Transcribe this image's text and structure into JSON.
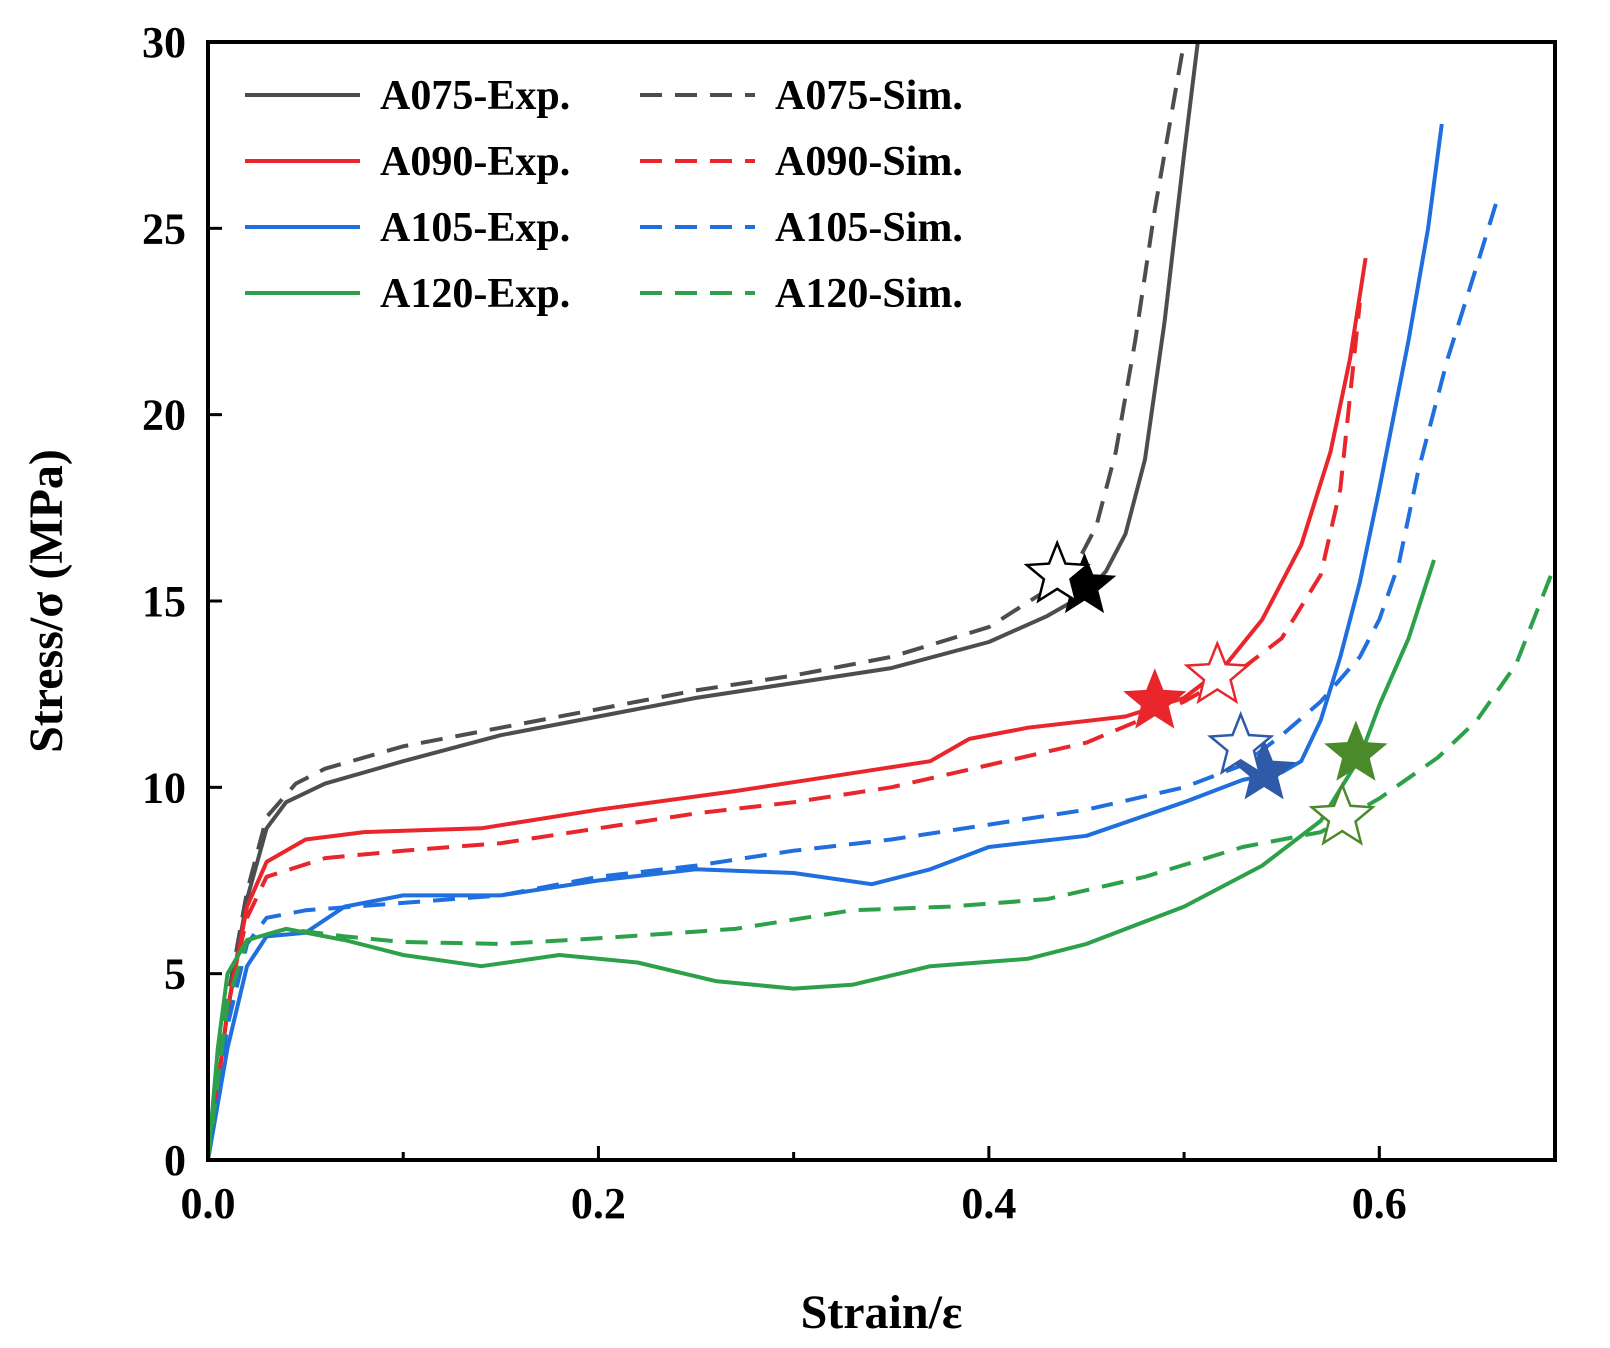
{
  "chart_data": {
    "type": "line",
    "title": "",
    "xlabel": "Strain/ε",
    "ylabel": "Stress/σ (MPa)",
    "xlim": [
      0.0,
      0.69
    ],
    "ylim": [
      0,
      30
    ],
    "x_ticks": [
      0.0,
      0.2,
      0.4,
      0.6
    ],
    "x_tick_labels": [
      "0.0",
      "0.2",
      "0.4",
      "0.6"
    ],
    "x_minor_ticks": [
      0.1,
      0.3,
      0.5
    ],
    "y_ticks": [
      0,
      5,
      10,
      15,
      20,
      25,
      30
    ],
    "y_tick_labels": [
      "0",
      "5",
      "10",
      "15",
      "20",
      "25",
      "30"
    ],
    "grid": false,
    "legend_position": "top-left",
    "series": [
      {
        "name": "A075-Exp.",
        "color": "#4d4d4d",
        "dash": "solid",
        "points": [
          [
            0,
            0
          ],
          [
            0.01,
            4
          ],
          [
            0.02,
            7
          ],
          [
            0.03,
            8.9
          ],
          [
            0.04,
            9.6
          ],
          [
            0.06,
            10.1
          ],
          [
            0.1,
            10.7
          ],
          [
            0.15,
            11.4
          ],
          [
            0.2,
            11.9
          ],
          [
            0.25,
            12.4
          ],
          [
            0.3,
            12.8
          ],
          [
            0.35,
            13.2
          ],
          [
            0.4,
            13.9
          ],
          [
            0.43,
            14.6
          ],
          [
            0.45,
            15.2
          ],
          [
            0.46,
            15.8
          ],
          [
            0.47,
            16.8
          ],
          [
            0.48,
            18.8
          ],
          [
            0.49,
            22.5
          ],
          [
            0.5,
            27
          ],
          [
            0.507,
            30
          ]
        ]
      },
      {
        "name": "A075-Sim.",
        "color": "#4d4d4d",
        "dash": "dashed",
        "points": [
          [
            0,
            0
          ],
          [
            0.01,
            4.3
          ],
          [
            0.02,
            7.2
          ],
          [
            0.03,
            9.2
          ],
          [
            0.045,
            10.1
          ],
          [
            0.06,
            10.5
          ],
          [
            0.1,
            11.1
          ],
          [
            0.15,
            11.6
          ],
          [
            0.2,
            12.1
          ],
          [
            0.25,
            12.6
          ],
          [
            0.3,
            13
          ],
          [
            0.35,
            13.5
          ],
          [
            0.4,
            14.3
          ],
          [
            0.43,
            15.3
          ],
          [
            0.445,
            16
          ],
          [
            0.455,
            17
          ],
          [
            0.465,
            19
          ],
          [
            0.475,
            22
          ],
          [
            0.485,
            25.5
          ],
          [
            0.495,
            28.5
          ],
          [
            0.5,
            30
          ]
        ]
      },
      {
        "name": "A090-Exp.",
        "color": "#e8262b",
        "dash": "solid",
        "points": [
          [
            0,
            0
          ],
          [
            0.01,
            4
          ],
          [
            0.02,
            6.8
          ],
          [
            0.03,
            8
          ],
          [
            0.05,
            8.6
          ],
          [
            0.08,
            8.8
          ],
          [
            0.14,
            8.9
          ],
          [
            0.2,
            9.4
          ],
          [
            0.27,
            9.9
          ],
          [
            0.32,
            10.3
          ],
          [
            0.37,
            10.7
          ],
          [
            0.39,
            11.3
          ],
          [
            0.42,
            11.6
          ],
          [
            0.47,
            11.9
          ],
          [
            0.5,
            12.4
          ],
          [
            0.52,
            13.2
          ],
          [
            0.54,
            14.5
          ],
          [
            0.56,
            16.5
          ],
          [
            0.575,
            19
          ],
          [
            0.585,
            21.5
          ],
          [
            0.593,
            24.2
          ]
        ]
      },
      {
        "name": "A090-Sim.",
        "color": "#e8262b",
        "dash": "dashed",
        "points": [
          [
            0,
            0
          ],
          [
            0.01,
            4.2
          ],
          [
            0.02,
            6.5
          ],
          [
            0.03,
            7.6
          ],
          [
            0.06,
            8.1
          ],
          [
            0.1,
            8.3
          ],
          [
            0.15,
            8.5
          ],
          [
            0.2,
            8.9
          ],
          [
            0.25,
            9.3
          ],
          [
            0.3,
            9.6
          ],
          [
            0.35,
            10
          ],
          [
            0.4,
            10.6
          ],
          [
            0.45,
            11.2
          ],
          [
            0.5,
            12.3
          ],
          [
            0.53,
            13.2
          ],
          [
            0.55,
            14
          ],
          [
            0.57,
            15.7
          ],
          [
            0.58,
            18
          ],
          [
            0.59,
            23
          ]
        ]
      },
      {
        "name": "A105-Exp.",
        "color": "#1f6fde",
        "dash": "solid",
        "points": [
          [
            0,
            0
          ],
          [
            0.01,
            3
          ],
          [
            0.02,
            5.2
          ],
          [
            0.03,
            6
          ],
          [
            0.05,
            6.1
          ],
          [
            0.07,
            6.8
          ],
          [
            0.1,
            7.1
          ],
          [
            0.15,
            7.1
          ],
          [
            0.2,
            7.5
          ],
          [
            0.25,
            7.8
          ],
          [
            0.3,
            7.7
          ],
          [
            0.34,
            7.4
          ],
          [
            0.37,
            7.8
          ],
          [
            0.4,
            8.4
          ],
          [
            0.45,
            8.7
          ],
          [
            0.5,
            9.6
          ],
          [
            0.53,
            10.2
          ],
          [
            0.55,
            10.4
          ],
          [
            0.56,
            10.7
          ],
          [
            0.57,
            11.8
          ],
          [
            0.58,
            13.5
          ],
          [
            0.59,
            15.5
          ],
          [
            0.6,
            18
          ],
          [
            0.615,
            22
          ],
          [
            0.625,
            25
          ],
          [
            0.632,
            27.8
          ]
        ]
      },
      {
        "name": "A105-Sim.",
        "color": "#1f6fde",
        "dash": "dashed",
        "points": [
          [
            0,
            0
          ],
          [
            0.01,
            3.6
          ],
          [
            0.02,
            5.8
          ],
          [
            0.03,
            6.5
          ],
          [
            0.05,
            6.7
          ],
          [
            0.1,
            6.9
          ],
          [
            0.15,
            7.1
          ],
          [
            0.2,
            7.6
          ],
          [
            0.25,
            7.9
          ],
          [
            0.3,
            8.3
          ],
          [
            0.35,
            8.6
          ],
          [
            0.4,
            9
          ],
          [
            0.45,
            9.4
          ],
          [
            0.5,
            10
          ],
          [
            0.53,
            10.6
          ],
          [
            0.55,
            11.4
          ],
          [
            0.57,
            12.3
          ],
          [
            0.59,
            13.5
          ],
          [
            0.6,
            14.5
          ],
          [
            0.61,
            16
          ],
          [
            0.62,
            18.5
          ],
          [
            0.635,
            21.5
          ],
          [
            0.65,
            24
          ],
          [
            0.66,
            25.7
          ]
        ]
      },
      {
        "name": "A120-Exp.",
        "color": "#2ca14a",
        "dash": "solid",
        "points": [
          [
            0,
            0
          ],
          [
            0.005,
            3
          ],
          [
            0.01,
            5
          ],
          [
            0.02,
            5.9
          ],
          [
            0.04,
            6.2
          ],
          [
            0.07,
            5.9
          ],
          [
            0.1,
            5.5
          ],
          [
            0.14,
            5.2
          ],
          [
            0.18,
            5.5
          ],
          [
            0.22,
            5.3
          ],
          [
            0.26,
            4.8
          ],
          [
            0.3,
            4.6
          ],
          [
            0.33,
            4.7
          ],
          [
            0.37,
            5.2
          ],
          [
            0.42,
            5.4
          ],
          [
            0.45,
            5.8
          ],
          [
            0.5,
            6.8
          ],
          [
            0.54,
            7.9
          ],
          [
            0.57,
            9.1
          ],
          [
            0.59,
            10.8
          ],
          [
            0.6,
            12.2
          ],
          [
            0.615,
            14
          ],
          [
            0.628,
            16.1
          ]
        ]
      },
      {
        "name": "A120-Sim.",
        "color": "#2ca14a",
        "dash": "dashed",
        "points": [
          [
            0,
            0
          ],
          [
            0.01,
            4.2
          ],
          [
            0.02,
            5.9
          ],
          [
            0.04,
            6.2
          ],
          [
            0.07,
            6
          ],
          [
            0.1,
            5.85
          ],
          [
            0.15,
            5.8
          ],
          [
            0.2,
            5.95
          ],
          [
            0.27,
            6.2
          ],
          [
            0.33,
            6.7
          ],
          [
            0.38,
            6.8
          ],
          [
            0.43,
            7
          ],
          [
            0.48,
            7.6
          ],
          [
            0.53,
            8.4
          ],
          [
            0.57,
            8.8
          ],
          [
            0.6,
            9.7
          ],
          [
            0.63,
            10.8
          ],
          [
            0.65,
            11.8
          ],
          [
            0.67,
            13.3
          ],
          [
            0.688,
            15.7
          ]
        ]
      }
    ],
    "markers": [
      {
        "series": "A075-Exp.",
        "x": 0.449,
        "y": 15.4,
        "style": "filled-star",
        "color": "#000000"
      },
      {
        "series": "A075-Sim.",
        "x": 0.435,
        "y": 15.7,
        "style": "open-star",
        "color": "#000000"
      },
      {
        "series": "A090-Exp.",
        "x": 0.485,
        "y": 12.3,
        "style": "filled-star",
        "color": "#e8262b"
      },
      {
        "series": "A090-Sim.",
        "x": 0.517,
        "y": 13.0,
        "style": "open-star",
        "color": "#e8262b"
      },
      {
        "series": "A105-Exp.",
        "x": 0.541,
        "y": 10.4,
        "style": "filled-star",
        "color": "#2f5aa8"
      },
      {
        "series": "A105-Sim.",
        "x": 0.529,
        "y": 11.1,
        "style": "open-star",
        "color": "#2f5aa8"
      },
      {
        "series": "A120-Exp.",
        "x": 0.588,
        "y": 10.9,
        "style": "filled-star",
        "color": "#4a8a2a"
      },
      {
        "series": "A120-Sim.",
        "x": 0.581,
        "y": 9.2,
        "style": "open-star",
        "color": "#4a8a2a"
      }
    ]
  }
}
